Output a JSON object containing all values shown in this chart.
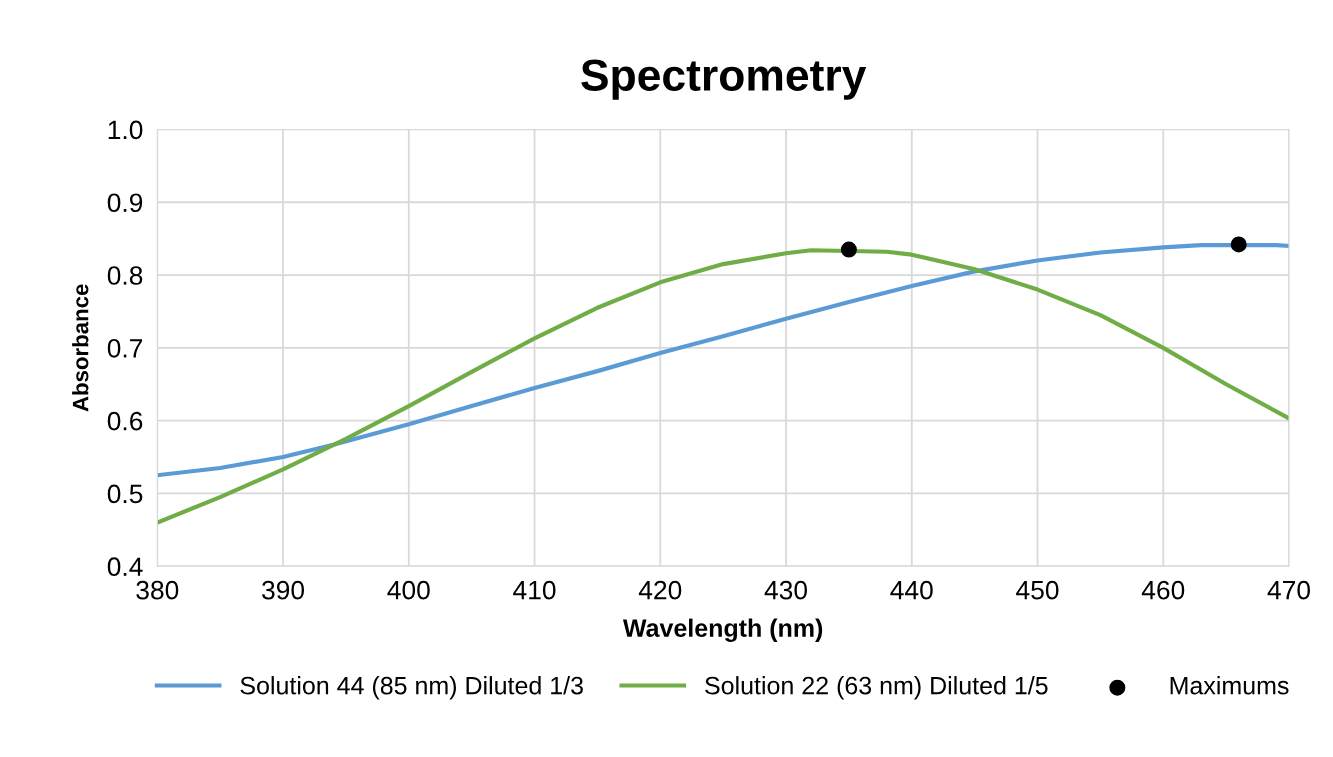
{
  "chart_data": {
    "type": "line",
    "title": "Spectrometry",
    "xlabel": "Wavelength (nm)",
    "ylabel": "Absorbance",
    "xlim": [
      380,
      470
    ],
    "xticks": [
      380,
      390,
      400,
      410,
      420,
      430,
      440,
      450,
      460,
      470
    ],
    "ylim": [
      0.4,
      1.0
    ],
    "yticks": [
      {
        "value": 0.4,
        "label": "0.4"
      },
      {
        "value": 0.5,
        "label": "0.5"
      },
      {
        "value": 0.6,
        "label": "0.6"
      },
      {
        "value": 0.7,
        "label": "0.7"
      },
      {
        "value": 0.8,
        "label": "0.8"
      },
      {
        "value": 0.9,
        "label": "0.9"
      },
      {
        "value": 1.0,
        "label": "1.0"
      }
    ],
    "grid": true,
    "legend": "bottom",
    "marker": "none",
    "line_style": "solid",
    "series": [
      {
        "name": "Solution 44 (85 nm) Diluted 1/3",
        "color": "#5b9bd5",
        "x": [
          380,
          385,
          390,
          394,
          400,
          405,
          410,
          415,
          420,
          425,
          430,
          435,
          440,
          445,
          450,
          455,
          460,
          463,
          469,
          470
        ],
        "values": [
          0.525,
          0.535,
          0.55,
          0.567,
          0.595,
          0.62,
          0.645,
          0.668,
          0.693,
          0.716,
          0.74,
          0.763,
          0.785,
          0.805,
          0.82,
          0.831,
          0.838,
          0.841,
          0.841,
          0.84
        ]
      },
      {
        "name": "Solution 22 (63 nm) Diluted 1/5",
        "color": "#70ad47",
        "x": [
          380,
          385,
          390,
          395,
          400,
          405,
          410,
          415,
          420,
          425,
          430,
          432,
          438,
          440,
          445,
          450,
          455,
          460,
          465,
          470
        ],
        "values": [
          0.46,
          0.495,
          0.533,
          0.575,
          0.62,
          0.667,
          0.713,
          0.755,
          0.79,
          0.815,
          0.83,
          0.834,
          0.832,
          0.828,
          0.808,
          0.78,
          0.745,
          0.7,
          0.65,
          0.603
        ]
      },
      {
        "name": "Maximums",
        "type": "scatter",
        "marker": "circle",
        "color": "#000000",
        "x": [
          435,
          466
        ],
        "values": [
          0.835,
          0.842
        ]
      }
    ]
  }
}
